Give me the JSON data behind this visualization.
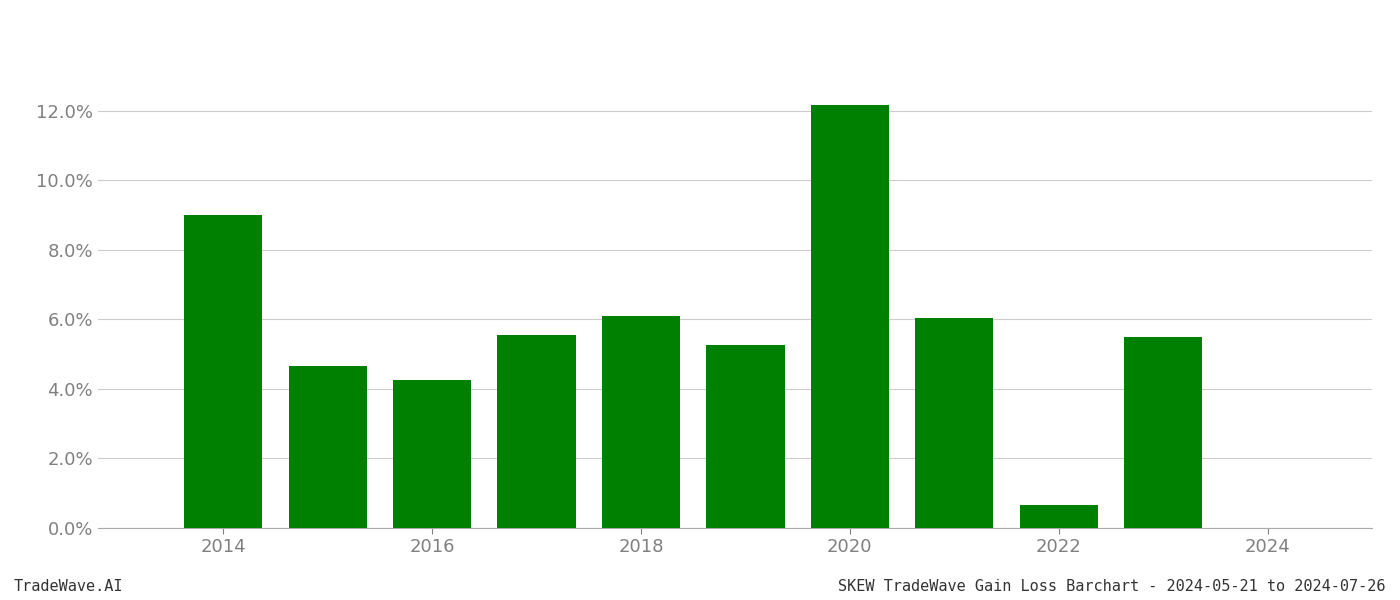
{
  "years": [
    2014,
    2015,
    2016,
    2017,
    2018,
    2019,
    2020,
    2021,
    2022,
    2023
  ],
  "values": [
    0.09,
    0.0465,
    0.0425,
    0.0555,
    0.061,
    0.0525,
    0.1215,
    0.0605,
    0.0065,
    0.055
  ],
  "bar_color": "#008000",
  "background_color": "#ffffff",
  "grid_color": "#cccccc",
  "tick_color": "#808080",
  "ylim": [
    0,
    0.138
  ],
  "yticks": [
    0.0,
    0.02,
    0.04,
    0.06,
    0.08,
    0.1,
    0.12
  ],
  "xticks": [
    2014,
    2016,
    2018,
    2020,
    2022,
    2024
  ],
  "xlim": [
    2012.8,
    2025.0
  ],
  "footer_left": "TradeWave.AI",
  "footer_right": "SKEW TradeWave Gain Loss Barchart - 2024-05-21 to 2024-07-26",
  "footer_fontsize": 11,
  "tick_fontsize": 13,
  "bar_width": 0.75
}
